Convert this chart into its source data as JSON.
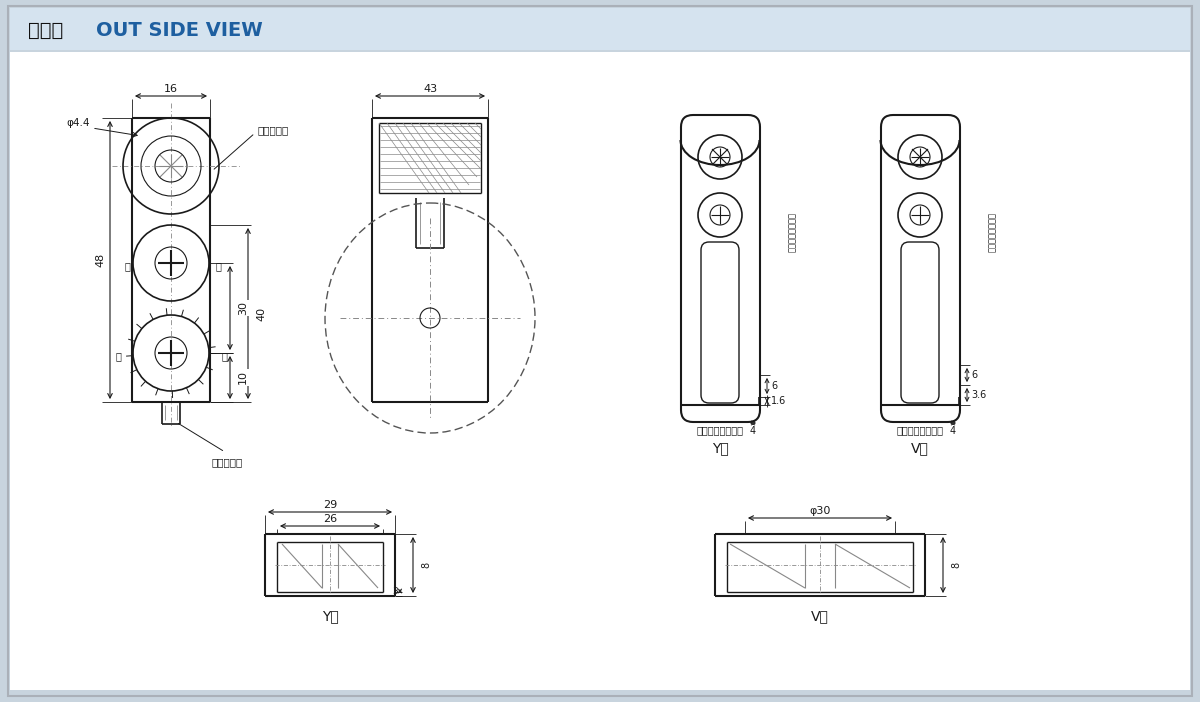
{
  "bg_color": "#c8d4de",
  "header_bg": "#d5e3ef",
  "white": "#ffffff",
  "lc": "#1a1a1a",
  "dc": "#1a1a1a",
  "blue": "#1e5fa0",
  "gray": "#888888",
  "title_jp": "外形図",
  "title_en": "OUT SIDE VIEW",
  "label_ud_neji": "上下用ねじ",
  "label_lr_giya": "左右用ギヤ",
  "label_ue": "上",
  "label_shita": "下",
  "label_hidari": "左",
  "label_migi": "右",
  "label_ud_range": "（上下調整範囲）",
  "label_lr_range": "（左右調整範囲）",
  "label_y": "Y型",
  "label_v": "V型"
}
